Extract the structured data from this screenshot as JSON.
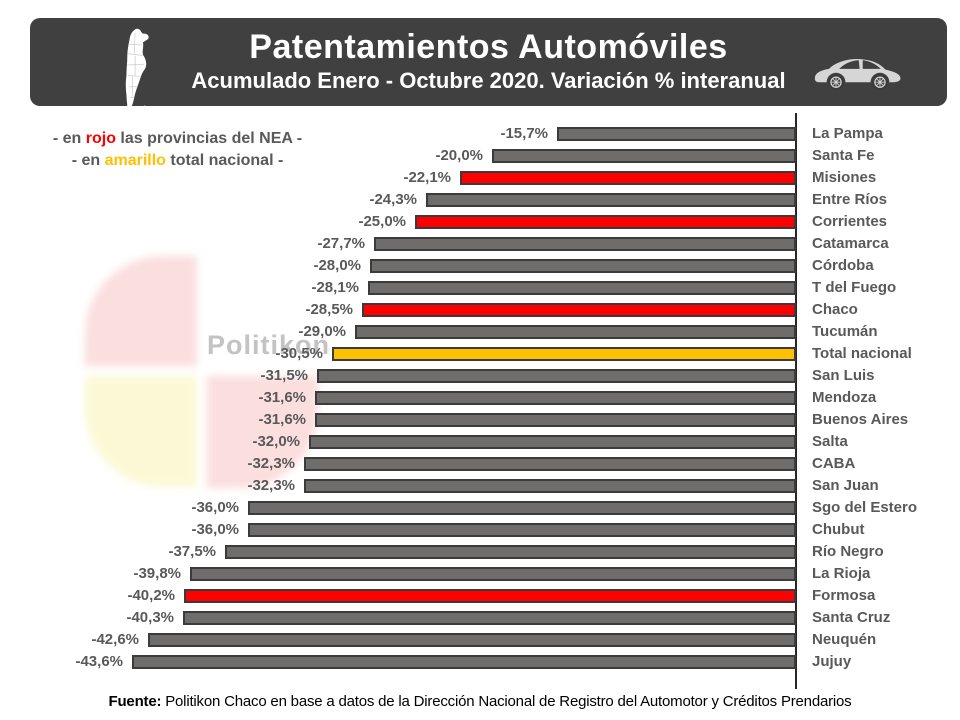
{
  "header": {
    "title": "Patentamientos Automóviles",
    "subtitle": "Acumulado Enero - Octubre 2020. Variación % interanual",
    "bg": "#404040"
  },
  "legend": {
    "line1": {
      "pre": "- en ",
      "em": "rojo",
      "post": " las provincias del NEA -",
      "em_color": "#FE0000"
    },
    "line2": {
      "pre": "- en ",
      "em": "amarillo",
      "post": " total nacional -",
      "em_color": "#FFC000"
    }
  },
  "watermark": {
    "text": "Politikon"
  },
  "chart_data": {
    "type": "bar",
    "orientation": "horizontal",
    "title": "Patentamientos Automóviles",
    "subtitle": "Acumulado Enero - Octubre 2020. Variación % interanual",
    "value_unit": "%",
    "xlim": [
      -45,
      0
    ],
    "grid": false,
    "colors": {
      "default": "#6F6C6C",
      "nea": "#FE0000",
      "national": "#FFC000",
      "bar_border": "#3B3B3B"
    },
    "rows": [
      {
        "name": "La Pampa",
        "value": -15.7,
        "label": "-15,7%",
        "group": "default"
      },
      {
        "name": "Santa Fe",
        "value": -20.0,
        "label": "-20,0%",
        "group": "default"
      },
      {
        "name": "Misiones",
        "value": -22.1,
        "label": "-22,1%",
        "group": "nea"
      },
      {
        "name": "Entre Ríos",
        "value": -24.3,
        "label": "-24,3%",
        "group": "default"
      },
      {
        "name": "Corrientes",
        "value": -25.0,
        "label": "-25,0%",
        "group": "nea"
      },
      {
        "name": "Catamarca",
        "value": -27.7,
        "label": "-27,7%",
        "group": "default"
      },
      {
        "name": "Córdoba",
        "value": -28.0,
        "label": "-28,0%",
        "group": "default"
      },
      {
        "name": "T del Fuego",
        "value": -28.1,
        "label": "-28,1%",
        "group": "default"
      },
      {
        "name": "Chaco",
        "value": -28.5,
        "label": "-28,5%",
        "group": "nea"
      },
      {
        "name": "Tucumán",
        "value": -29.0,
        "label": "-29,0%",
        "group": "default"
      },
      {
        "name": "Total nacional",
        "value": -30.5,
        "label": "-30,5%",
        "group": "national"
      },
      {
        "name": "San Luis",
        "value": -31.5,
        "label": "-31,5%",
        "group": "default"
      },
      {
        "name": "Mendoza",
        "value": -31.6,
        "label": "-31,6%",
        "group": "default"
      },
      {
        "name": "Buenos Aires",
        "value": -31.6,
        "label": "-31,6%",
        "group": "default"
      },
      {
        "name": "Salta",
        "value": -32.0,
        "label": "-32,0%",
        "group": "default"
      },
      {
        "name": "CABA",
        "value": -32.3,
        "label": "-32,3%",
        "group": "default"
      },
      {
        "name": "San Juan",
        "value": -32.3,
        "label": "-32,3%",
        "group": "default"
      },
      {
        "name": "Sgo del Estero",
        "value": -36.0,
        "label": "-36,0%",
        "group": "default"
      },
      {
        "name": "Chubut",
        "value": -36.0,
        "label": "-36,0%",
        "group": "default"
      },
      {
        "name": "Río Negro",
        "value": -37.5,
        "label": "-37,5%",
        "group": "default"
      },
      {
        "name": "La Rioja",
        "value": -39.8,
        "label": "-39,8%",
        "group": "default"
      },
      {
        "name": "Formosa",
        "value": -40.2,
        "label": "-40,2%",
        "group": "nea"
      },
      {
        "name": "Santa Cruz",
        "value": -40.3,
        "label": "-40,3%",
        "group": "default"
      },
      {
        "name": "Neuquén",
        "value": -42.6,
        "label": "-42,6%",
        "group": "default"
      },
      {
        "name": "Jujuy",
        "value": -43.6,
        "label": "-43,6%",
        "group": "default"
      }
    ]
  },
  "footer": {
    "bold": "Fuente:",
    "text": " Politikon Chaco en base a datos de la Dirección Nacional de Registro del Automotor y Créditos Prendarios"
  }
}
